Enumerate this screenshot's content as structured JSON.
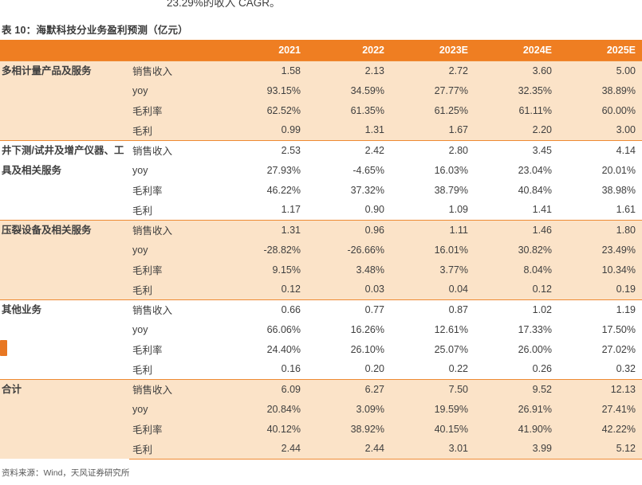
{
  "page": {
    "top_partial_text": "23.29%的收入 CAGR。",
    "table_caption": "表 10：海默科技分业务盈利预测（亿元）",
    "source_note": "资料来源：Wind，天风证券研究所"
  },
  "colors": {
    "header_bg": "#EF7E22",
    "header_text": "#FFFFFF",
    "shaded_row_bg": "#FBE3C8",
    "divider": "#EE8A33",
    "body_text": "#3F3F3F",
    "source_text": "#595959",
    "margin_mark": "#E87722"
  },
  "table": {
    "year_headers": [
      "2021",
      "2022",
      "2023E",
      "2024E",
      "2025E"
    ],
    "metric_labels": [
      "销售收入",
      "yoy",
      "毛利率",
      "毛利"
    ],
    "groups": [
      {
        "name": "多相计量产品及服务",
        "shaded": true,
        "rows": [
          {
            "metric": "销售收入",
            "values": [
              "1.58",
              "2.13",
              "2.72",
              "3.60",
              "5.00"
            ]
          },
          {
            "metric": "yoy",
            "values": [
              "93.15%",
              "34.59%",
              "27.77%",
              "32.35%",
              "38.89%"
            ]
          },
          {
            "metric": "毛利率",
            "values": [
              "62.52%",
              "61.35%",
              "61.25%",
              "61.11%",
              "60.00%"
            ]
          },
          {
            "metric": "毛利",
            "values": [
              "0.99",
              "1.31",
              "1.67",
              "2.20",
              "3.00"
            ]
          }
        ]
      },
      {
        "name": "井下测/试井及增产仪器、工具及相关服务",
        "shaded": false,
        "rows": [
          {
            "metric": "销售收入",
            "values": [
              "2.53",
              "2.42",
              "2.80",
              "3.45",
              "4.14"
            ]
          },
          {
            "metric": "yoy",
            "values": [
              "27.93%",
              "-4.65%",
              "16.03%",
              "23.04%",
              "20.01%"
            ]
          },
          {
            "metric": "毛利率",
            "values": [
              "46.22%",
              "37.32%",
              "38.79%",
              "40.84%",
              "38.98%"
            ]
          },
          {
            "metric": "毛利",
            "values": [
              "1.17",
              "0.90",
              "1.09",
              "1.41",
              "1.61"
            ]
          }
        ]
      },
      {
        "name": "压裂设备及相关服务",
        "shaded": true,
        "rows": [
          {
            "metric": "销售收入",
            "values": [
              "1.31",
              "0.96",
              "1.11",
              "1.46",
              "1.80"
            ]
          },
          {
            "metric": "yoy",
            "values": [
              "-28.82%",
              "-26.66%",
              "16.01%",
              "30.82%",
              "23.49%"
            ]
          },
          {
            "metric": "毛利率",
            "values": [
              "9.15%",
              "3.48%",
              "3.77%",
              "8.04%",
              "10.34%"
            ]
          },
          {
            "metric": "毛利",
            "values": [
              "0.12",
              "0.03",
              "0.04",
              "0.12",
              "0.19"
            ]
          }
        ]
      },
      {
        "name": "其他业务",
        "shaded": false,
        "rows": [
          {
            "metric": "销售收入",
            "values": [
              "0.66",
              "0.77",
              "0.87",
              "1.02",
              "1.19"
            ]
          },
          {
            "metric": "yoy",
            "values": [
              "66.06%",
              "16.26%",
              "12.61%",
              "17.33%",
              "17.50%"
            ]
          },
          {
            "metric": "毛利率",
            "values": [
              "24.40%",
              "26.10%",
              "25.07%",
              "26.00%",
              "27.02%"
            ]
          },
          {
            "metric": "毛利",
            "values": [
              "0.16",
              "0.20",
              "0.22",
              "0.26",
              "0.32"
            ]
          }
        ]
      },
      {
        "name": "合计",
        "shaded": true,
        "rows": [
          {
            "metric": "销售收入",
            "values": [
              "6.09",
              "6.27",
              "7.50",
              "9.52",
              "12.13"
            ]
          },
          {
            "metric": "yoy",
            "values": [
              "20.84%",
              "3.09%",
              "19.59%",
              "26.91%",
              "27.41%"
            ]
          },
          {
            "metric": "毛利率",
            "values": [
              "40.12%",
              "38.92%",
              "40.15%",
              "41.90%",
              "42.22%"
            ]
          },
          {
            "metric": "毛利",
            "values": [
              "2.44",
              "2.44",
              "3.01",
              "3.99",
              "5.12"
            ]
          }
        ]
      }
    ]
  }
}
